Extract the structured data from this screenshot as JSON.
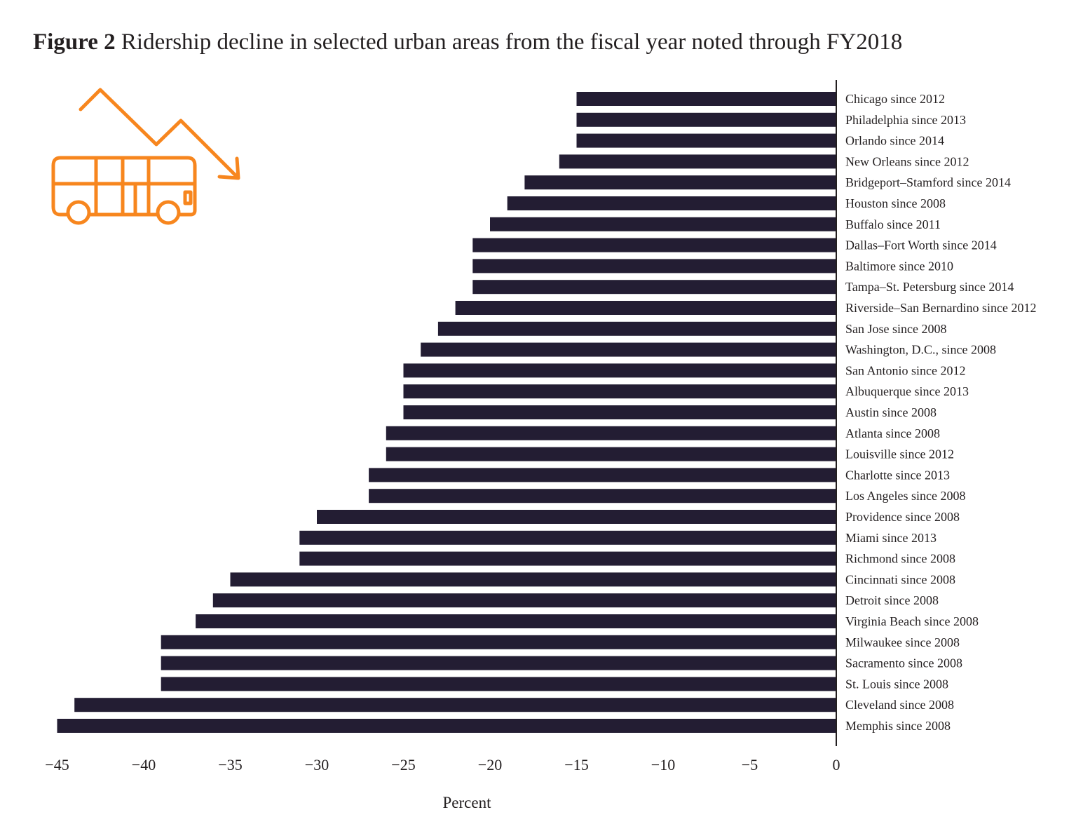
{
  "title_prefix": "Figure 2",
  "title_text": " Ridership decline in selected urban areas from the fiscal year noted through FY2018",
  "chart_data": {
    "type": "bar",
    "orientation": "horizontal",
    "title": "Ridership decline in selected urban areas from the fiscal year noted through FY2018",
    "xlabel": "Percent",
    "ylabel": "",
    "xlim": [
      -46,
      0
    ],
    "xticks": [
      -45,
      -40,
      -35,
      -30,
      -25,
      -20,
      -15,
      -10,
      -5,
      0
    ],
    "categories": [
      "Chicago since 2012",
      "Philadelphia since 2013",
      "Orlando since 2014",
      "New Orleans since 2012",
      "Bridgeport–Stamford since 2014",
      "Houston since 2008",
      "Buffalo since 2011",
      "Dallas–Fort Worth since 2014",
      "Baltimore since 2010",
      "Tampa–St. Petersburg since 2014",
      "Riverside–San Bernardino since 2012",
      "San Jose since 2008",
      "Washington, D.C., since 2008",
      "San Antonio since 2012",
      "Albuquerque since 2013",
      "Austin since 2008",
      "Atlanta since 2008",
      "Louisville since 2012",
      "Charlotte since 2013",
      "Los Angeles since 2008",
      "Providence since 2008",
      "Miami since 2013",
      "Richmond since 2008",
      "Cincinnati since 2008",
      "Detroit since 2008",
      "Virginia Beach since 2008",
      "Milwaukee since 2008",
      "Sacramento since 2008",
      "St. Louis since 2008",
      "Cleveland since 2008",
      "Memphis since 2008"
    ],
    "values": [
      -15,
      -15,
      -15,
      -16,
      -18,
      -19,
      -20,
      -21,
      -21,
      -21,
      -22,
      -23,
      -24,
      -25,
      -25,
      -25,
      -26,
      -26,
      -27,
      -27,
      -30,
      -31,
      -31,
      -35,
      -36,
      -37,
      -39,
      -39,
      -39,
      -44,
      -45
    ],
    "colors": {
      "bar": "#231d33",
      "text": "#231f20",
      "icon": "#f7861e"
    },
    "icon": "bus-decline-icon"
  }
}
